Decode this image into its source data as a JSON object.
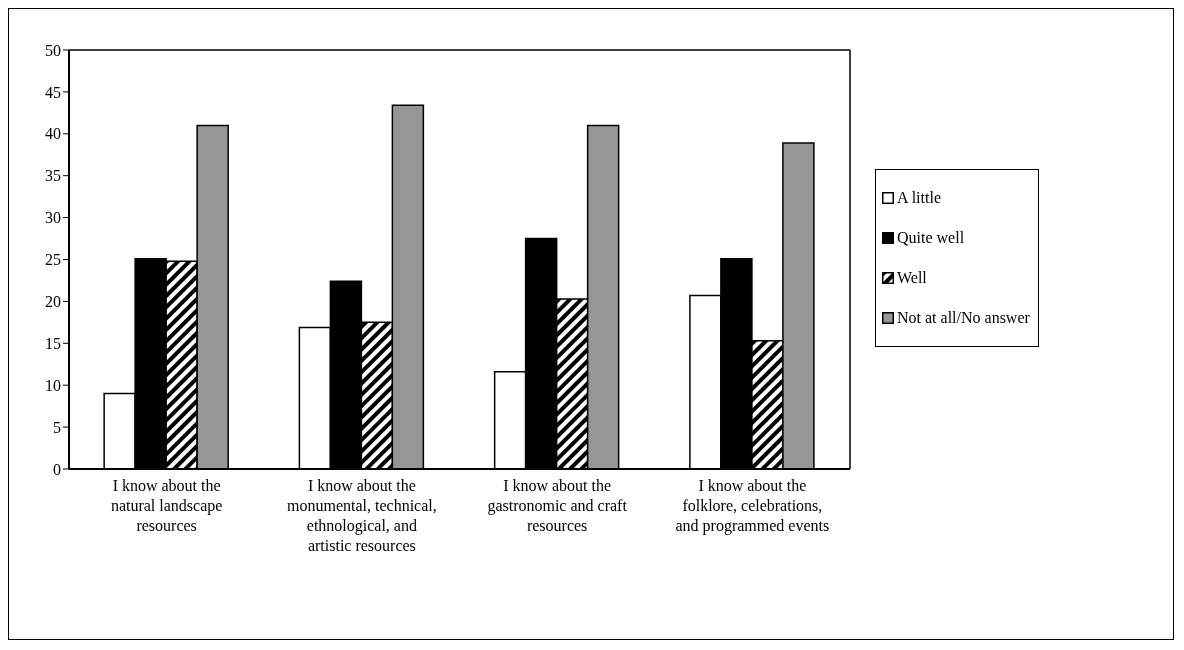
{
  "chart_data": {
    "type": "bar",
    "categories": [
      "I know about the natural landscape resources",
      "I know about the monumental, technical, ethnological, and artistic resources",
      "I know about the gastronomic and craft resources",
      "I know about the folklore, celebrations, and programmed events"
    ],
    "series": [
      {
        "name": "A little",
        "color": "#ffffff",
        "values": [
          9.0,
          16.9,
          11.6,
          20.7
        ]
      },
      {
        "name": "Quite well",
        "color": "#000000",
        "values": [
          25.1,
          22.4,
          27.5,
          25.1
        ]
      },
      {
        "name": "Well",
        "color": "#000000",
        "values": [
          24.8,
          17.5,
          20.3,
          15.3
        ]
      },
      {
        "name": "Not at all/No answer",
        "color": "#969696",
        "values": [
          41.0,
          43.4,
          41.0,
          38.9
        ]
      }
    ],
    "ylim": [
      0,
      50
    ],
    "yticks": [
      0,
      5,
      10,
      15,
      20,
      25,
      30,
      35,
      40,
      45,
      50
    ],
    "legend": "right"
  }
}
